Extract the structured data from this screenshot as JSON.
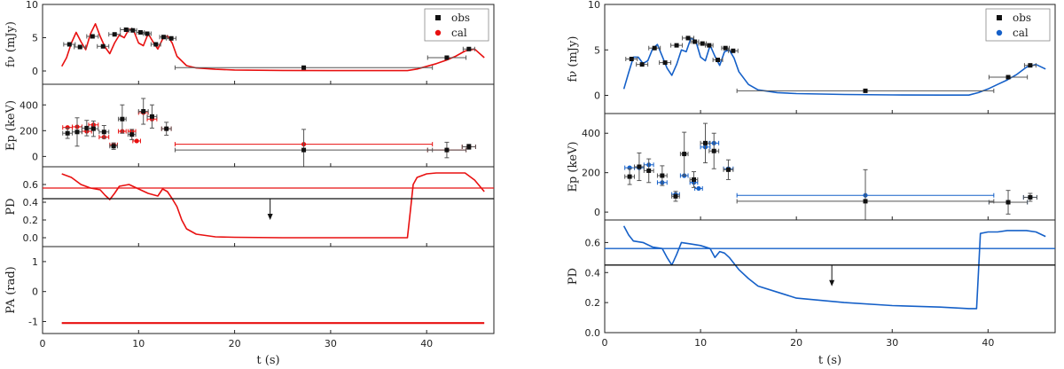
{
  "chart_data": [
    {
      "type": "scatter",
      "id": "left",
      "title": "",
      "xlabel": "t (s)",
      "xlim": [
        0,
        47
      ],
      "xticks": [
        0,
        10,
        20,
        30,
        40
      ],
      "legend": {
        "position": "top-right",
        "entries": [
          "obs",
          "cal"
        ]
      },
      "colors": {
        "obs": "#111111",
        "cal": "#e81010"
      },
      "panels": [
        {
          "name": "flux",
          "ylabel": "fν (mJy)",
          "ylim": [
            -2,
            10
          ],
          "yticks": [
            0,
            5,
            10
          ],
          "obs": [
            {
              "x": 2.8,
              "y": 4.0,
              "xerr": 0.6
            },
            {
              "x": 3.9,
              "y": 3.6,
              "xerr": 0.6
            },
            {
              "x": 5.2,
              "y": 5.2,
              "xerr": 0.6
            },
            {
              "x": 6.3,
              "y": 3.7,
              "xerr": 0.6
            },
            {
              "x": 7.5,
              "y": 5.5,
              "xerr": 0.6
            },
            {
              "x": 8.7,
              "y": 6.2,
              "xerr": 0.6
            },
            {
              "x": 9.4,
              "y": 6.1,
              "xerr": 0.4
            },
            {
              "x": 10.2,
              "y": 5.8,
              "xerr": 0.4
            },
            {
              "x": 10.9,
              "y": 5.6,
              "xerr": 0.4
            },
            {
              "x": 11.8,
              "y": 4.0,
              "xerr": 0.5
            },
            {
              "x": 12.6,
              "y": 5.1,
              "xerr": 0.4
            },
            {
              "x": 13.4,
              "y": 4.9,
              "xerr": 0.5
            },
            {
              "x": 27.2,
              "y": 0.5,
              "xerr": 13.4
            },
            {
              "x": 42.1,
              "y": 2.0,
              "xerr": 2.0
            },
            {
              "x": 44.4,
              "y": 3.3,
              "xerr": 0.6
            }
          ],
          "cal_curve": {
            "x": [
              2,
              2.5,
              3,
              3.5,
              4,
              4.5,
              5,
              5.5,
              6,
              6.5,
              7,
              7.5,
              8,
              8.5,
              9,
              9.5,
              10,
              10.5,
              11,
              11.5,
              12,
              12.5,
              13,
              13.5,
              14,
              15,
              16,
              18,
              20,
              25,
              30,
              35,
              38,
              39,
              40,
              41,
              42,
              43,
              44,
              45,
              46
            ],
            "y": [
              0.7,
              2.0,
              4.2,
              5.8,
              4.4,
              3.2,
              5.6,
              7.1,
              5.2,
              3.6,
              2.6,
              4.2,
              5.4,
              5.0,
              6.3,
              6.0,
              4.2,
              3.8,
              5.6,
              4.4,
              3.3,
              4.8,
              5.3,
              4.2,
              2.2,
              0.8,
              0.45,
              0.25,
              0.15,
              0.08,
              0.05,
              0.05,
              0.05,
              0.3,
              0.7,
              1.1,
              1.6,
              2.2,
              3.0,
              3.3,
              2.0
            ]
          }
        },
        {
          "name": "ep",
          "ylabel": "Ep (keV)",
          "ylim": [
            -80,
            560
          ],
          "yticks": [
            0,
            200,
            400
          ],
          "obs": [
            {
              "x": 2.6,
              "y": 180,
              "xerr": 0.5,
              "yerr": 40
            },
            {
              "x": 3.6,
              "y": 190,
              "xerr": 0.5,
              "yerr": 110
            },
            {
              "x": 4.6,
              "y": 220,
              "xerr": 0.5,
              "yerr": 60
            },
            {
              "x": 5.3,
              "y": 215,
              "xerr": 0.5,
              "yerr": 60
            },
            {
              "x": 6.4,
              "y": 190,
              "xerr": 0.5,
              "yerr": 50
            },
            {
              "x": 7.4,
              "y": 80,
              "xerr": 0.4,
              "yerr": 25
            },
            {
              "x": 8.3,
              "y": 290,
              "xerr": 0.4,
              "yerr": 110
            },
            {
              "x": 9.3,
              "y": 170,
              "xerr": 0.4,
              "yerr": 40
            },
            {
              "x": 10.5,
              "y": 350,
              "xerr": 0.5,
              "yerr": 100
            },
            {
              "x": 11.4,
              "y": 310,
              "xerr": 0.5,
              "yerr": 90
            },
            {
              "x": 12.9,
              "y": 215,
              "xerr": 0.5,
              "yerr": 50
            },
            {
              "x": 27.2,
              "y": 50,
              "xerr": 13.4,
              "yerr": 160
            },
            {
              "x": 42.1,
              "y": 50,
              "xerr": 2.0,
              "yerr": 60
            },
            {
              "x": 44.4,
              "y": 75,
              "xerr": 0.7,
              "yerr": 20
            }
          ],
          "cal": [
            {
              "x": 2.6,
              "y": 225,
              "xerr": 0.5
            },
            {
              "x": 3.6,
              "y": 230,
              "xerr": 0.5
            },
            {
              "x": 4.6,
              "y": 195,
              "xerr": 0.5
            },
            {
              "x": 5.3,
              "y": 245,
              "xerr": 0.5
            },
            {
              "x": 6.4,
              "y": 150,
              "xerr": 0.5
            },
            {
              "x": 7.4,
              "y": 90,
              "xerr": 0.4
            },
            {
              "x": 8.3,
              "y": 195,
              "xerr": 0.4
            },
            {
              "x": 9.3,
              "y": 195,
              "xerr": 0.4
            },
            {
              "x": 9.8,
              "y": 120,
              "xerr": 0.4
            },
            {
              "x": 10.5,
              "y": 340,
              "xerr": 0.5
            },
            {
              "x": 11.4,
              "y": 290,
              "xerr": 0.5
            },
            {
              "x": 12.9,
              "y": 215,
              "xerr": 0.5
            },
            {
              "x": 27.2,
              "y": 95,
              "xerr": 13.4
            },
            {
              "x": 42.1,
              "y": 50,
              "xerr": 2.0
            },
            {
              "x": 44.4,
              "y": 75,
              "xerr": 0.7
            }
          ]
        },
        {
          "name": "pd",
          "ylabel": "PD",
          "ylim": [
            -0.1,
            0.8
          ],
          "yticks": [
            0.0,
            0.2,
            0.4,
            0.6
          ],
          "obs_upper_limit": 0.44,
          "upper_limit_arrow_x": 23.7,
          "cal_mean": 0.56,
          "cal_curve": {
            "x": [
              2,
              3,
              4,
              5,
              6,
              6.5,
              7,
              7.5,
              8,
              9,
              10,
              11,
              12,
              12.5,
              13,
              13.5,
              14,
              14.5,
              15,
              16,
              18,
              20,
              25,
              30,
              35,
              38,
              38.3,
              38.6,
              39,
              40,
              41,
              42,
              43,
              44,
              45,
              46
            ],
            "y": [
              0.72,
              0.68,
              0.6,
              0.56,
              0.54,
              0.48,
              0.43,
              0.5,
              0.58,
              0.6,
              0.55,
              0.5,
              0.47,
              0.55,
              0.52,
              0.44,
              0.35,
              0.2,
              0.1,
              0.04,
              0.01,
              0.005,
              0.0,
              0.0,
              0.0,
              0.0,
              0.3,
              0.6,
              0.68,
              0.72,
              0.73,
              0.73,
              0.73,
              0.73,
              0.65,
              0.52
            ]
          }
        },
        {
          "name": "pa",
          "ylabel": "PA (rad)",
          "ylim": [
            -1.4,
            1.5
          ],
          "yticks": [
            -1,
            0,
            1
          ],
          "cal_constant": -1.05,
          "x_range": [
            2,
            46
          ]
        }
      ]
    },
    {
      "type": "scatter",
      "id": "right",
      "title": "",
      "xlabel": "t (s)",
      "xlim": [
        0,
        47
      ],
      "xticks": [
        0,
        10,
        20,
        30,
        40
      ],
      "legend": {
        "position": "top-right",
        "entries": [
          "obs",
          "cal"
        ]
      },
      "colors": {
        "obs": "#111111",
        "cal": "#1560c8"
      },
      "panels": [
        {
          "name": "flux",
          "ylabel": "fν (mJy)",
          "ylim": [
            -2,
            10
          ],
          "yticks": [
            0,
            5,
            10
          ],
          "obs": [
            {
              "x": 2.8,
              "y": 4.0,
              "xerr": 0.6
            },
            {
              "x": 3.9,
              "y": 3.4,
              "xerr": 0.6
            },
            {
              "x": 5.2,
              "y": 5.2,
              "xerr": 0.6
            },
            {
              "x": 6.3,
              "y": 3.6,
              "xerr": 0.6
            },
            {
              "x": 7.5,
              "y": 5.5,
              "xerr": 0.6
            },
            {
              "x": 8.7,
              "y": 6.3,
              "xerr": 0.6
            },
            {
              "x": 9.4,
              "y": 5.9,
              "xerr": 0.4
            },
            {
              "x": 10.2,
              "y": 5.7,
              "xerr": 0.4
            },
            {
              "x": 10.9,
              "y": 5.5,
              "xerr": 0.4
            },
            {
              "x": 11.8,
              "y": 3.9,
              "xerr": 0.5
            },
            {
              "x": 12.6,
              "y": 5.2,
              "xerr": 0.4
            },
            {
              "x": 13.4,
              "y": 4.9,
              "xerr": 0.5
            },
            {
              "x": 27.2,
              "y": 0.5,
              "xerr": 13.4
            },
            {
              "x": 42.1,
              "y": 2.0,
              "xerr": 2.0
            },
            {
              "x": 44.4,
              "y": 3.3,
              "xerr": 0.6
            }
          ],
          "cal_curve": {
            "x": [
              2,
              2.5,
              3,
              3.5,
              4,
              4.5,
              5,
              5.5,
              6,
              6.5,
              7,
              7.5,
              8,
              8.5,
              9,
              9.5,
              10,
              10.5,
              11,
              11.5,
              12,
              12.5,
              13,
              13.5,
              14,
              15,
              16,
              18,
              20,
              25,
              30,
              35,
              38,
              39,
              40,
              41,
              42,
              43,
              44,
              45,
              46
            ],
            "y": [
              0.7,
              2.5,
              4.2,
              4.2,
              3.5,
              3.8,
              5.1,
              5.6,
              4.3,
              3.0,
              2.2,
              3.4,
              5.0,
              4.8,
              6.3,
              6.0,
              4.2,
              3.8,
              5.5,
              4.3,
              3.3,
              4.8,
              5.0,
              4.1,
              2.6,
              1.2,
              0.6,
              0.3,
              0.2,
              0.1,
              0.05,
              0.03,
              0.03,
              0.3,
              0.7,
              1.2,
              1.7,
              2.3,
              3.1,
              3.4,
              2.9
            ]
          }
        },
        {
          "name": "ep",
          "ylabel": "Ep (keV)",
          "ylim": [
            -40,
            500
          ],
          "yticks": [
            0,
            200,
            400
          ],
          "obs": [
            {
              "x": 2.6,
              "y": 180,
              "xerr": 0.5,
              "yerr": 40
            },
            {
              "x": 3.6,
              "y": 230,
              "xerr": 0.5,
              "yerr": 70
            },
            {
              "x": 4.6,
              "y": 210,
              "xerr": 0.5,
              "yerr": 60
            },
            {
              "x": 6.0,
              "y": 185,
              "xerr": 0.5,
              "yerr": 50
            },
            {
              "x": 7.4,
              "y": 80,
              "xerr": 0.4,
              "yerr": 25
            },
            {
              "x": 8.3,
              "y": 295,
              "xerr": 0.4,
              "yerr": 110
            },
            {
              "x": 9.3,
              "y": 165,
              "xerr": 0.4,
              "yerr": 40
            },
            {
              "x": 10.5,
              "y": 350,
              "xerr": 0.5,
              "yerr": 100
            },
            {
              "x": 11.4,
              "y": 310,
              "xerr": 0.5,
              "yerr": 90
            },
            {
              "x": 12.9,
              "y": 215,
              "xerr": 0.5,
              "yerr": 50
            },
            {
              "x": 27.2,
              "y": 55,
              "xerr": 13.4,
              "yerr": 160
            },
            {
              "x": 42.1,
              "y": 50,
              "xerr": 2.0,
              "yerr": 60
            },
            {
              "x": 44.4,
              "y": 75,
              "xerr": 0.7,
              "yerr": 20
            }
          ],
          "cal": [
            {
              "x": 2.6,
              "y": 225,
              "xerr": 0.5
            },
            {
              "x": 3.6,
              "y": 225,
              "xerr": 0.5
            },
            {
              "x": 4.6,
              "y": 240,
              "xerr": 0.5
            },
            {
              "x": 6.0,
              "y": 150,
              "xerr": 0.5
            },
            {
              "x": 7.4,
              "y": 90,
              "xerr": 0.4
            },
            {
              "x": 8.3,
              "y": 185,
              "xerr": 0.4
            },
            {
              "x": 9.3,
              "y": 150,
              "xerr": 0.4
            },
            {
              "x": 9.8,
              "y": 120,
              "xerr": 0.4
            },
            {
              "x": 10.5,
              "y": 330,
              "xerr": 0.5
            },
            {
              "x": 11.4,
              "y": 350,
              "xerr": 0.5
            },
            {
              "x": 12.9,
              "y": 220,
              "xerr": 0.5
            },
            {
              "x": 27.2,
              "y": 85,
              "xerr": 13.4
            },
            {
              "x": 42.1,
              "y": 50,
              "xerr": 2.0
            },
            {
              "x": 44.4,
              "y": 75,
              "xerr": 0.7
            }
          ]
        },
        {
          "name": "pd",
          "ylabel": "PD",
          "ylim": [
            0.0,
            0.75
          ],
          "yticks": [
            0.0,
            0.2,
            0.4,
            0.6
          ],
          "obs_upper_limit": 0.45,
          "upper_limit_arrow_x": 23.7,
          "cal_mean": 0.56,
          "cal_curve": {
            "x": [
              2,
              2.5,
              3,
              4,
              5,
              6,
              6.5,
              7,
              7.5,
              8,
              9,
              10,
              11,
              11.5,
              12,
              12.5,
              13,
              13.5,
              14,
              15,
              16,
              18,
              20,
              25,
              30,
              35,
              38,
              38.8,
              39,
              39.2,
              40,
              41,
              42,
              43,
              44,
              45,
              46
            ],
            "y": [
              0.71,
              0.65,
              0.61,
              0.6,
              0.57,
              0.56,
              0.5,
              0.45,
              0.52,
              0.6,
              0.59,
              0.58,
              0.56,
              0.5,
              0.54,
              0.53,
              0.5,
              0.46,
              0.42,
              0.36,
              0.31,
              0.27,
              0.23,
              0.2,
              0.18,
              0.17,
              0.16,
              0.16,
              0.4,
              0.66,
              0.67,
              0.67,
              0.68,
              0.68,
              0.68,
              0.67,
              0.64
            ]
          }
        }
      ]
    }
  ]
}
